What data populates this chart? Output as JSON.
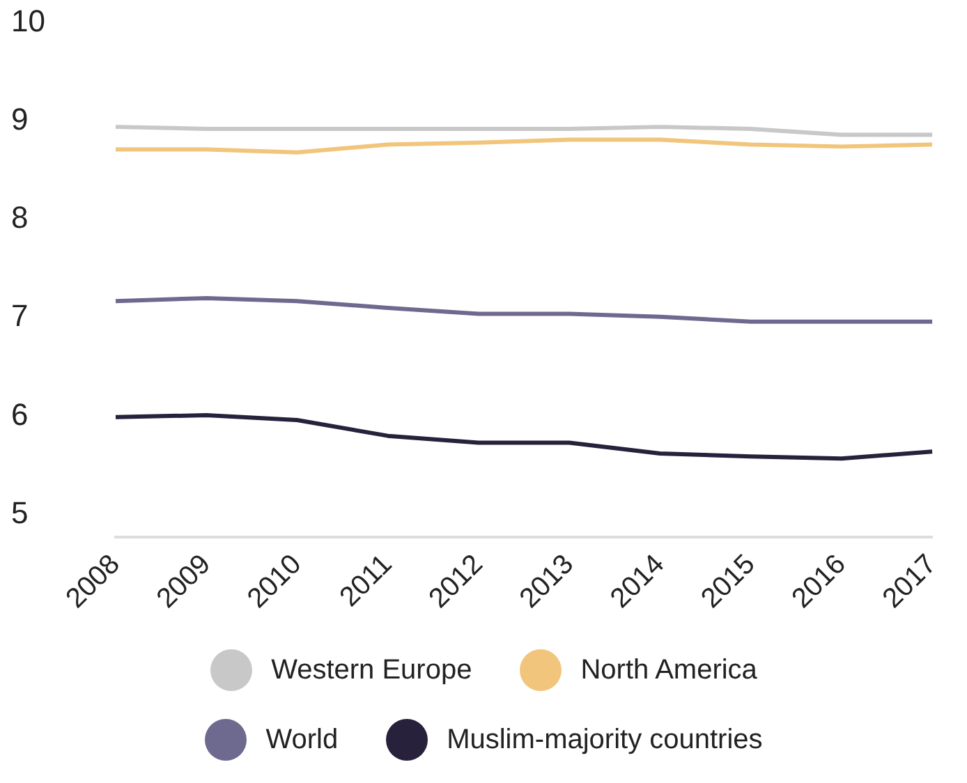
{
  "chart_data": {
    "type": "line",
    "categories": [
      "2008",
      "2009",
      "2010",
      "2011",
      "2012",
      "2013",
      "2014",
      "2015",
      "2016",
      "2017"
    ],
    "series": [
      {
        "name": "Western Europe",
        "color": "#c8c8c8",
        "values": [
          8.94,
          8.92,
          8.92,
          8.92,
          8.92,
          8.92,
          8.94,
          8.92,
          8.86,
          8.86
        ]
      },
      {
        "name": "North America",
        "color": "#f2c57c",
        "values": [
          8.71,
          8.71,
          8.68,
          8.76,
          8.78,
          8.81,
          8.81,
          8.76,
          8.74,
          8.76
        ]
      },
      {
        "name": "World",
        "color": "#6e6a8f",
        "values": [
          7.17,
          7.2,
          7.17,
          7.1,
          7.04,
          7.04,
          7.01,
          6.96,
          6.96,
          6.96
        ]
      },
      {
        "name": "Muslim-majority countries",
        "color": "#27213c",
        "values": [
          5.99,
          6.01,
          5.96,
          5.8,
          5.73,
          5.73,
          5.62,
          5.59,
          5.57,
          5.64
        ]
      }
    ],
    "ylim": [
      4.77,
      10
    ],
    "yticks": [
      5,
      6,
      7,
      8,
      9,
      10
    ],
    "grid": false,
    "legend": "bottom",
    "marker": "none",
    "line_style": "solid"
  }
}
